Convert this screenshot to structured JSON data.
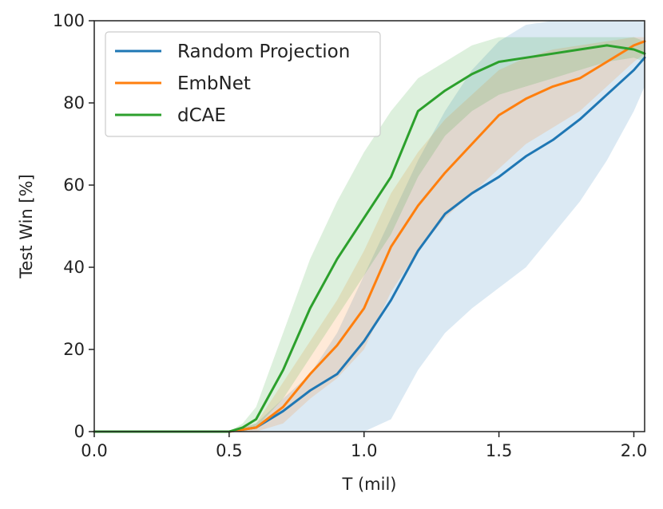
{
  "chart_data": {
    "type": "line",
    "title": "",
    "xlabel": "T (mil)",
    "ylabel": "Test Win [%]",
    "xlim": [
      0,
      2.04
    ],
    "ylim": [
      0,
      100
    ],
    "xticks": [
      0.0,
      0.5,
      1.0,
      1.5,
      2.0
    ],
    "xtick_labels": [
      "0.0",
      "0.5",
      "1.0",
      "1.5",
      "2.0"
    ],
    "yticks": [
      0,
      20,
      40,
      60,
      80,
      100
    ],
    "ytick_labels": [
      "0",
      "20",
      "40",
      "60",
      "80",
      "100"
    ],
    "grid": false,
    "legend_position": "top-left",
    "series": [
      {
        "name": "Random Projection",
        "color": "#1f77b4",
        "x": [
          0.0,
          0.5,
          0.6,
          0.7,
          0.8,
          0.9,
          1.0,
          1.1,
          1.2,
          1.3,
          1.4,
          1.5,
          1.6,
          1.7,
          1.8,
          1.9,
          2.0,
          2.04
        ],
        "values": [
          0,
          0,
          1,
          5,
          10,
          14,
          22,
          32,
          44,
          53,
          58,
          62,
          67,
          71,
          76,
          82,
          88,
          91
        ],
        "band_lower": [
          0,
          0,
          0,
          0,
          0,
          0,
          0,
          3,
          15,
          24,
          30,
          35,
          40,
          48,
          56,
          66,
          78,
          84
        ],
        "band_upper": [
          0,
          0,
          2,
          8,
          14,
          24,
          38,
          52,
          66,
          78,
          88,
          95,
          99,
          100,
          100,
          100,
          100,
          100
        ]
      },
      {
        "name": "EmbNet",
        "color": "#ff7f0e",
        "x": [
          0.0,
          0.5,
          0.6,
          0.7,
          0.8,
          0.9,
          1.0,
          1.1,
          1.2,
          1.3,
          1.4,
          1.5,
          1.6,
          1.7,
          1.8,
          1.9,
          2.0,
          2.04
        ],
        "values": [
          0,
          0,
          1,
          6,
          14,
          21,
          30,
          45,
          55,
          63,
          70,
          77,
          81,
          84,
          86,
          90,
          94,
          95
        ],
        "band_lower": [
          0,
          0,
          0,
          2,
          8,
          13,
          20,
          34,
          44,
          52,
          58,
          64,
          70,
          74,
          78,
          84,
          90,
          92
        ],
        "band_upper": [
          0,
          0,
          2,
          12,
          22,
          32,
          44,
          58,
          68,
          76,
          82,
          88,
          91,
          93,
          94,
          95,
          96,
          96
        ]
      },
      {
        "name": "dCAE",
        "color": "#2ca02c",
        "x": [
          0.0,
          0.5,
          0.55,
          0.6,
          0.7,
          0.8,
          0.9,
          1.0,
          1.1,
          1.2,
          1.3,
          1.4,
          1.5,
          1.6,
          1.7,
          1.8,
          1.9,
          2.0,
          2.04
        ],
        "values": [
          0,
          0,
          1,
          3,
          15,
          30,
          42,
          52,
          62,
          78,
          83,
          87,
          90,
          91,
          92,
          93,
          94,
          93,
          92
        ],
        "band_lower": [
          0,
          0,
          0,
          1,
          8,
          18,
          28,
          38,
          48,
          62,
          72,
          78,
          82,
          84,
          86,
          88,
          90,
          91,
          90
        ],
        "band_upper": [
          0,
          0,
          2,
          6,
          24,
          42,
          56,
          68,
          78,
          86,
          90,
          94,
          96,
          96,
          96,
          96,
          96,
          96,
          95
        ]
      }
    ]
  }
}
